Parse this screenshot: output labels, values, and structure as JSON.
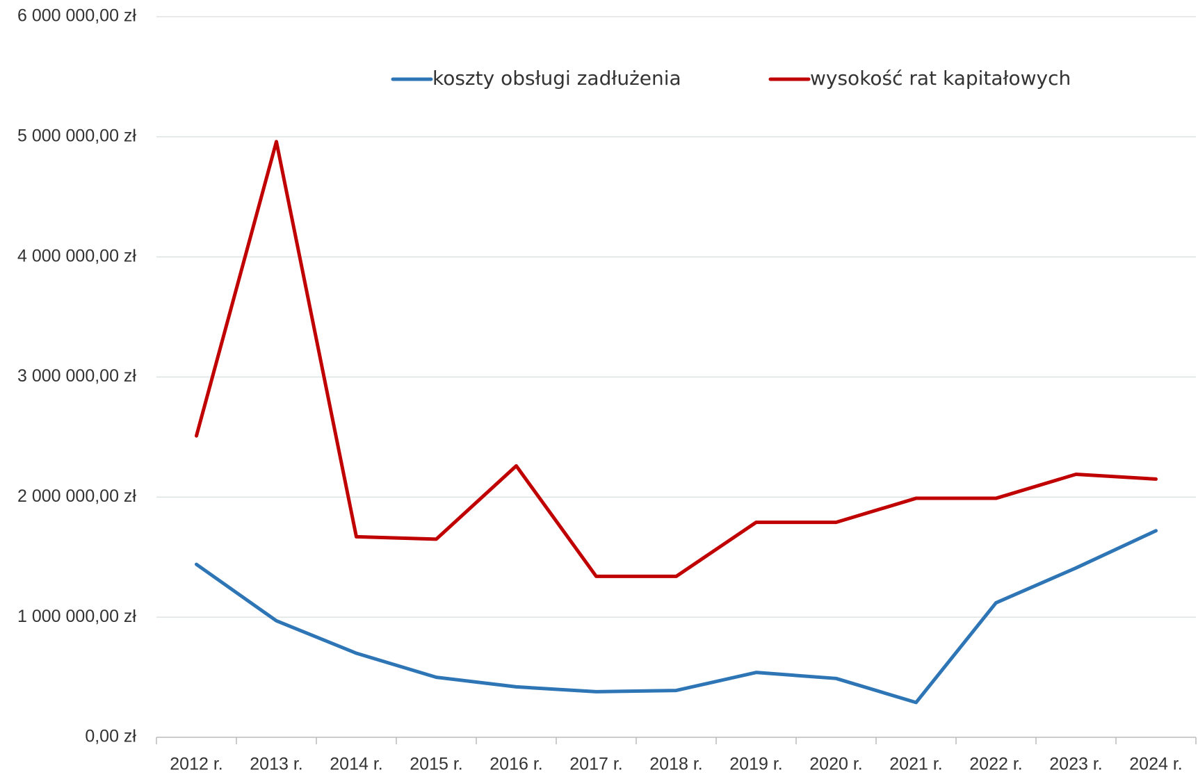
{
  "chart_data": {
    "type": "line",
    "categories": [
      "2012 r.",
      "2013 r.",
      "2014 r.",
      "2015 r.",
      "2016 r.",
      "2017 r.",
      "2018 r.",
      "2019 r.",
      "2020 r.",
      "2021 r.",
      "2022 r.",
      "2023 r.",
      "2024 r."
    ],
    "series": [
      {
        "name": "koszty obsługi zadłużenia",
        "color": "#2e75b6",
        "values": [
          1440000,
          970000,
          700000,
          500000,
          420000,
          380000,
          390000,
          540000,
          490000,
          290000,
          1120000,
          1410000,
          1720000
        ]
      },
      {
        "name": "wysokość rat kapitałowych",
        "color": "#c00000",
        "values": [
          2510000,
          4960000,
          1670000,
          1650000,
          2260000,
          1340000,
          1340000,
          1790000,
          1790000,
          1990000,
          1990000,
          2190000,
          2150000
        ]
      }
    ],
    "ylim": [
      0,
      6000000
    ],
    "yticks": [
      {
        "value": 0,
        "label": "0,00 zł"
      },
      {
        "value": 1000000,
        "label": "1 000 000,00 zł"
      },
      {
        "value": 2000000,
        "label": "2 000 000,00 zł"
      },
      {
        "value": 3000000,
        "label": "3 000 000,00 zł"
      },
      {
        "value": 4000000,
        "label": "4 000 000,00 zł"
      },
      {
        "value": 5000000,
        "label": "5 000 000,00 zł"
      },
      {
        "value": 6000000,
        "label": "6 000 000,00 zł"
      }
    ],
    "grid": true,
    "legend": "top"
  }
}
